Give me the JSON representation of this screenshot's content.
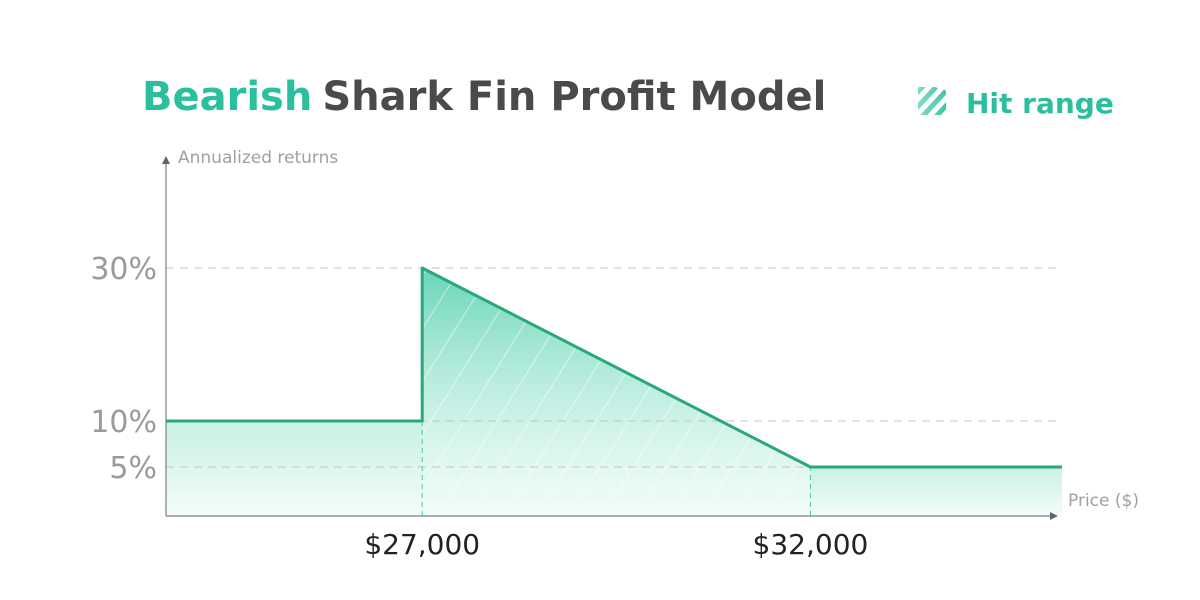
{
  "chart_data": {
    "type": "line",
    "title_highlight": "Bearish",
    "title_rest": "Shark Fin Profit Model",
    "ylabel": "Annualized returns",
    "xlabel": "Price ($)",
    "legend": {
      "label": "Hit range",
      "position": "top-right"
    },
    "y_ticks": [
      {
        "value": 30,
        "label": "30%"
      },
      {
        "value": 10,
        "label": "10%"
      },
      {
        "value": 5,
        "label": "5%"
      }
    ],
    "x_ticks": [
      {
        "value": 27000,
        "label": "$27,000"
      },
      {
        "value": 32000,
        "label": "$32,000"
      }
    ],
    "xlim": [
      23700,
      35240
    ],
    "ylim": [
      0,
      40
    ],
    "grid": "dashed at y ticks",
    "series": [
      {
        "points": [
          [
            23700,
            10
          ],
          [
            27000,
            10
          ],
          [
            27000,
            30
          ],
          [
            32000,
            5
          ],
          [
            35240,
            5
          ]
        ]
      }
    ],
    "hit_range": [
      27000,
      32000
    ],
    "colors": {
      "accent": "#2cbf9f",
      "line": "#2aa87a",
      "title": "#4a4a4a",
      "axis_label": "#a0a0a0",
      "tick": "#9a9a9a",
      "xtick": "#222222",
      "axis": "#5d6470"
    }
  }
}
